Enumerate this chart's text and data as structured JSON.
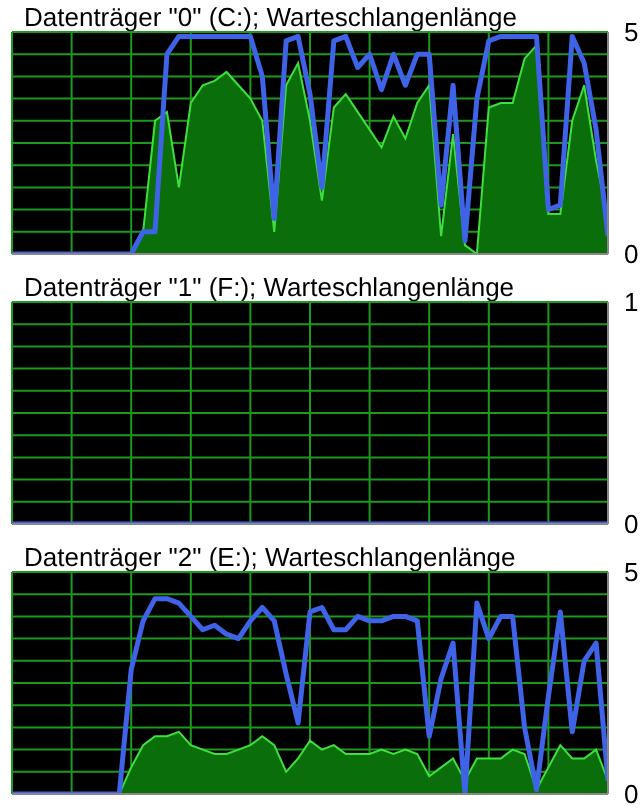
{
  "chart_data": [
    {
      "type": "area",
      "title": "Datenträger \"0\" (C:); Warteschlangenlänge",
      "categories": [
        null,
        null,
        null,
        null,
        null,
        null,
        null,
        null,
        null,
        null,
        null,
        null,
        null,
        null,
        null,
        null,
        null,
        null,
        null,
        null,
        null,
        null,
        null,
        null,
        null,
        null,
        null,
        null,
        null,
        null,
        null,
        null,
        null,
        null,
        null,
        null,
        null,
        null,
        null,
        null,
        null,
        null,
        null,
        null,
        null,
        null,
        null,
        null,
        null,
        null,
        null
      ],
      "ylim": [
        0,
        5
      ],
      "yticks": [
        0,
        {
          "value": 0.5,
          "label": null
        },
        {
          "value": 1,
          "label": null
        },
        {
          "value": 1.5,
          "label": null
        },
        {
          "value": 2,
          "label": null
        },
        {
          "value": 2.5,
          "label": null
        },
        {
          "value": 3,
          "label": null
        },
        {
          "value": 3.5,
          "label": null
        },
        {
          "value": 4,
          "label": null
        },
        {
          "value": 4.5,
          "label": null
        },
        5
      ],
      "grid": true,
      "tick_labels": "y",
      "series": [
        {
          "color": "#0a6e0a",
          "values": [
            0,
            0,
            0,
            0,
            0,
            0,
            0,
            0,
            0,
            0,
            0,
            0.5,
            3.0,
            3.2,
            1.5,
            3.4,
            3.8,
            3.9,
            4.1,
            3.8,
            3.5,
            3.0,
            0.5,
            3.8,
            4.3,
            3.0,
            1.2,
            3.3,
            3.6,
            3.2,
            2.8,
            2.4,
            3.1,
            2.6,
            3.4,
            3.8,
            0.4,
            2.7,
            0.2,
            0,
            3.3,
            3.4,
            3.4,
            4.4,
            4.7,
            0.9,
            0.9,
            3.0,
            3.8,
            2.1,
            0.8
          ]
        },
        {
          "type": "line",
          "color": "#3f63e6",
          "values": [
            0,
            0,
            0,
            0,
            0,
            0,
            0,
            0,
            0,
            0,
            0,
            0.5,
            0.5,
            4.5,
            4.9,
            4.9,
            4.9,
            4.9,
            4.9,
            4.9,
            4.9,
            4.0,
            0.8,
            4.8,
            4.9,
            3.6,
            1.5,
            4.8,
            4.9,
            4.2,
            4.5,
            3.7,
            4.5,
            3.8,
            4.5,
            4.5,
            1.1,
            3.8,
            0.3,
            3.5,
            4.8,
            4.9,
            4.9,
            4.9,
            4.9,
            1.0,
            1.1,
            4.9,
            4.3,
            2.8,
            0.4
          ]
        }
      ]
    },
    {
      "type": "line",
      "title": "Datenträger \"1\" (F:); Warteschlangenlänge",
      "categories": [
        null,
        null,
        null,
        null,
        null,
        null,
        null,
        null,
        null,
        null,
        null,
        null,
        null,
        null,
        null,
        null,
        null,
        null,
        null,
        null,
        null,
        null,
        null,
        null,
        null,
        null,
        null,
        null,
        null,
        null,
        null,
        null,
        null,
        null,
        null,
        null,
        null,
        null,
        null,
        null,
        null,
        null,
        null,
        null,
        null,
        null,
        null,
        null,
        null,
        null,
        null
      ],
      "ylim": [
        0,
        1
      ],
      "yticks": [
        0,
        {
          "value": 0.1,
          "label": null
        },
        {
          "value": 0.2,
          "label": null
        },
        {
          "value": 0.3,
          "label": null
        },
        {
          "value": 0.4,
          "label": null
        },
        {
          "value": 0.5,
          "label": null
        },
        {
          "value": 0.6,
          "label": null
        },
        {
          "value": 0.7,
          "label": null
        },
        {
          "value": 0.8,
          "label": null
        },
        {
          "value": 0.9,
          "label": null
        },
        1
      ],
      "grid": true,
      "tick_labels": "y",
      "series": [
        {
          "color": "#3f63e6",
          "values": [
            0,
            0,
            0,
            0,
            0,
            0,
            0,
            0,
            0,
            0,
            0,
            0,
            0,
            0,
            0,
            0,
            0,
            0,
            0,
            0,
            0,
            0,
            0,
            0,
            0,
            0,
            0,
            0,
            0,
            0,
            0,
            0,
            0,
            0,
            0,
            0,
            0,
            0,
            0,
            0,
            0,
            0,
            0,
            0,
            0,
            0,
            0,
            0,
            0,
            0,
            0
          ]
        }
      ]
    },
    {
      "type": "area",
      "title": "Datenträger \"2\" (E:); Warteschlangenlänge",
      "categories": [
        null,
        null,
        null,
        null,
        null,
        null,
        null,
        null,
        null,
        null,
        null,
        null,
        null,
        null,
        null,
        null,
        null,
        null,
        null,
        null,
        null,
        null,
        null,
        null,
        null,
        null,
        null,
        null,
        null,
        null,
        null,
        null,
        null,
        null,
        null,
        null,
        null,
        null,
        null,
        null,
        null,
        null,
        null,
        null,
        null,
        null,
        null,
        null,
        null,
        null,
        null
      ],
      "ylim": [
        0,
        5
      ],
      "yticks": [
        0,
        {
          "value": 0.5,
          "label": null
        },
        {
          "value": 1,
          "label": null
        },
        {
          "value": 1.5,
          "label": null
        },
        {
          "value": 2,
          "label": null
        },
        {
          "value": 2.5,
          "label": null
        },
        {
          "value": 3,
          "label": null
        },
        {
          "value": 3.5,
          "label": null
        },
        {
          "value": 4,
          "label": null
        },
        {
          "value": 4.5,
          "label": null
        },
        5
      ],
      "grid": true,
      "tick_labels": "y",
      "series": [
        {
          "color": "#0a6e0a",
          "values": [
            0,
            0,
            0,
            0,
            0,
            0,
            0,
            0,
            0,
            0,
            0.6,
            1.1,
            1.3,
            1.3,
            1.4,
            1.1,
            1.0,
            0.9,
            0.9,
            1.0,
            1.1,
            1.3,
            1.1,
            0.5,
            0.8,
            1.2,
            1.0,
            1.1,
            0.9,
            0.9,
            0.9,
            1.0,
            0.9,
            1.0,
            0.9,
            0.4,
            0.6,
            0.8,
            0.3,
            0.8,
            0.8,
            0.8,
            1.0,
            0.9,
            0.1,
            0.6,
            1.1,
            0.8,
            0.8,
            1.0,
            0.3
          ]
        },
        {
          "type": "line",
          "color": "#3f63e6",
          "values": [
            0,
            0,
            0,
            0,
            0,
            0,
            0,
            0,
            0,
            0,
            2.8,
            3.9,
            4.4,
            4.4,
            4.3,
            4.0,
            3.7,
            3.8,
            3.6,
            3.5,
            3.9,
            4.2,
            3.9,
            2.7,
            1.6,
            4.1,
            4.2,
            3.7,
            3.7,
            4.0,
            3.9,
            3.9,
            4.0,
            4.0,
            3.9,
            1.3,
            2.6,
            3.4,
            0,
            4.3,
            3.5,
            4.0,
            4.0,
            1.5,
            0.1,
            2.2,
            4.1,
            1.4,
            3.0,
            3.4,
            0.3
          ]
        }
      ]
    }
  ]
}
